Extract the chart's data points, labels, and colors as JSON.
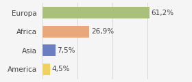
{
  "categories": [
    "Europa",
    "Africa",
    "Asia",
    "America"
  ],
  "values": [
    61.2,
    26.9,
    7.5,
    4.5
  ],
  "labels": [
    "61,2%",
    "26,9%",
    "7,5%",
    "4,5%"
  ],
  "bar_colors": [
    "#a8c07a",
    "#e8a87c",
    "#6b7ec2",
    "#f0d060"
  ],
  "background_color": "#f5f5f5",
  "xlim": [
    0,
    80
  ],
  "bar_height": 0.62,
  "label_fontsize": 7.5,
  "tick_fontsize": 7.5,
  "grid_color": "#cccccc"
}
